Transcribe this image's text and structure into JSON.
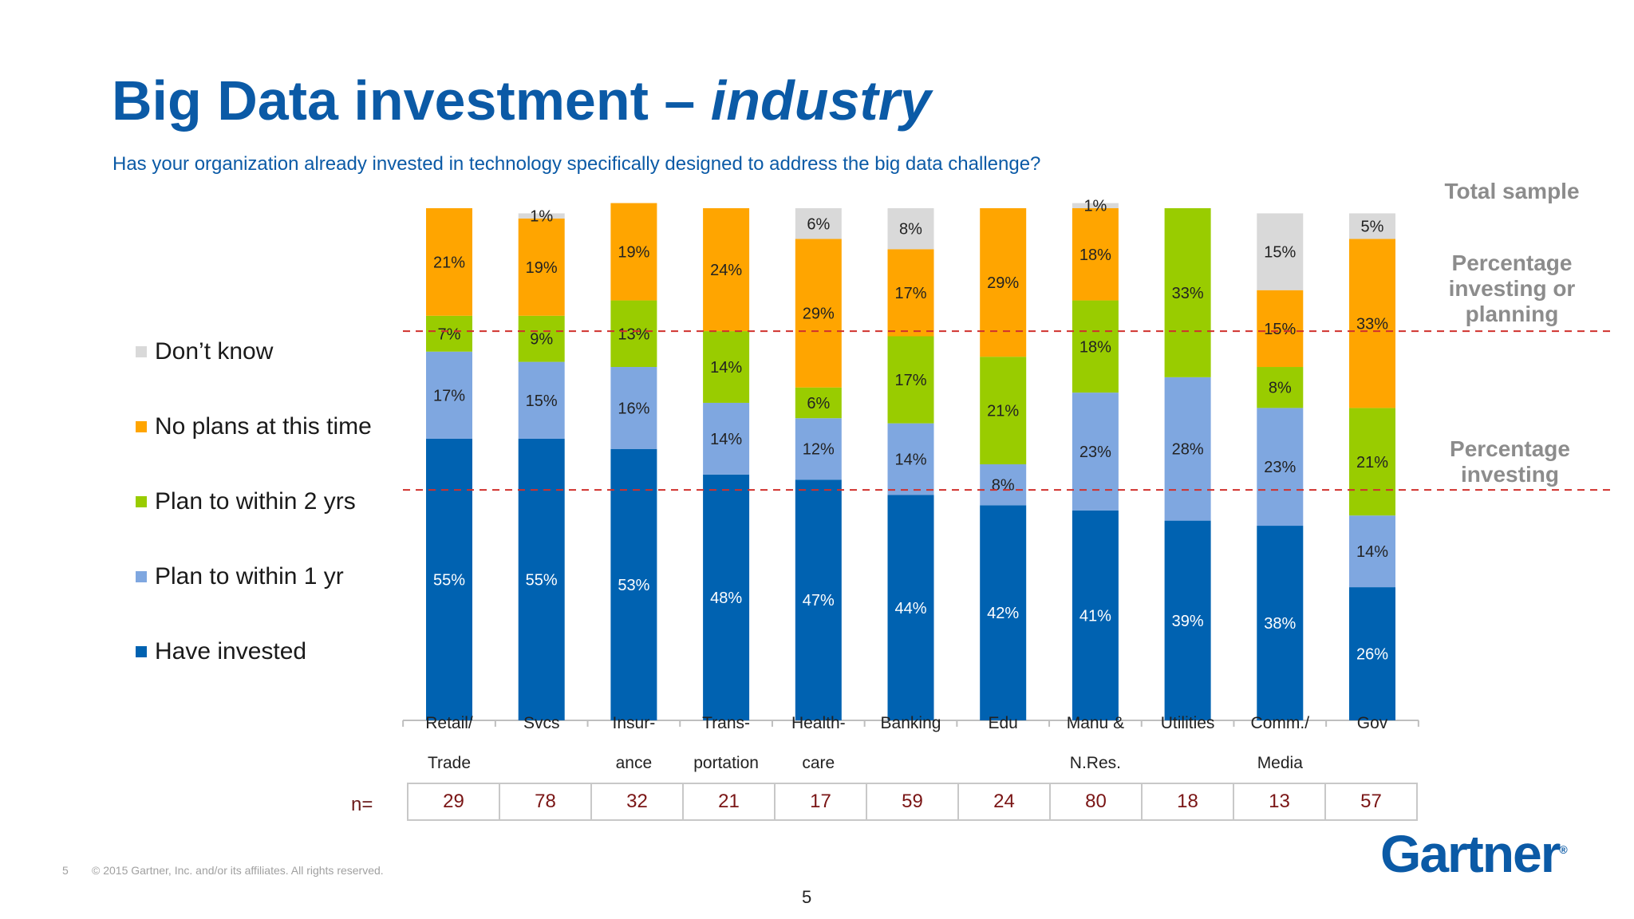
{
  "header": {
    "title_main": "Big Data investment – ",
    "title_italic": "industry",
    "subtitle": "Has your organization already invested in technology specifically designed to address the big data challenge?"
  },
  "side_labels": {
    "total": "Total sample",
    "planning": "Percentage investing or planning",
    "investing": "Percentage investing"
  },
  "colors": {
    "dont_know": "#d9d9d9",
    "no_plans": "#ffa500",
    "plan_2yrs": "#99cc00",
    "plan_1yr": "#7fa7e0",
    "have_invested": "#0062b1",
    "ref_line": "#d0312d",
    "title": "#0b5aa6"
  },
  "chart_data": {
    "type": "bar",
    "stacked": true,
    "categories": [
      [
        "Retail/",
        "Trade"
      ],
      [
        "Svcs",
        ""
      ],
      [
        "Insur-",
        "ance"
      ],
      [
        "Trans-",
        "portation"
      ],
      [
        "Health-",
        "care"
      ],
      [
        "Banking",
        ""
      ],
      [
        "Edu",
        ""
      ],
      [
        "Manu &",
        "N.Res."
      ],
      [
        "Utilities",
        ""
      ],
      [
        "Comm./",
        "Media"
      ],
      [
        "Gov",
        ""
      ]
    ],
    "series": [
      {
        "name": "Have invested",
        "color_key": "have_invested",
        "values": [
          55,
          55,
          53,
          48,
          47,
          44,
          42,
          41,
          39,
          38,
          26
        ]
      },
      {
        "name": "Plan to within 1 yr",
        "color_key": "plan_1yr",
        "values": [
          17,
          15,
          16,
          14,
          12,
          14,
          8,
          23,
          28,
          23,
          14
        ]
      },
      {
        "name": "Plan to within 2 yrs",
        "color_key": "plan_2yrs",
        "values": [
          7,
          9,
          13,
          14,
          6,
          17,
          21,
          18,
          33,
          8,
          21
        ]
      },
      {
        "name": "No plans at this time",
        "color_key": "no_plans",
        "values": [
          21,
          19,
          19,
          24,
          29,
          17,
          29,
          18,
          0,
          15,
          33
        ]
      },
      {
        "name": "Don’t know",
        "color_key": "dont_know",
        "values": [
          0,
          1,
          0,
          0,
          6,
          8,
          0,
          1,
          0,
          15,
          5
        ]
      }
    ],
    "labels": [
      [
        "55%",
        "17%",
        "7%",
        "21%",
        ""
      ],
      [
        "55%",
        "15%",
        "9%",
        "19%",
        "1%"
      ],
      [
        "53%",
        "16%",
        "13%",
        "19%",
        ""
      ],
      [
        "48%",
        "14%",
        "14%",
        "24%",
        ""
      ],
      [
        "47%",
        "12%",
        "6%",
        "29%",
        "6%"
      ],
      [
        "44%",
        "14%",
        "17%",
        "17%",
        "8%"
      ],
      [
        "42%",
        "8%",
        "21%",
        "29%",
        ""
      ],
      [
        "41%",
        "23%",
        "18%",
        "18%",
        "1%"
      ],
      [
        "39%",
        "28%",
        "33%",
        "",
        ""
      ],
      [
        "38%",
        "23%",
        "8%",
        "15%",
        "15%"
      ],
      [
        "26%",
        "14%",
        "21%",
        "33%",
        "5%"
      ]
    ],
    "reference_lines": {
      "investing": 45,
      "investing_or_planning": 76
    },
    "ylim": [
      0,
      100
    ],
    "n_label": "n=",
    "n_values": [
      "29",
      "78",
      "32",
      "21",
      "17",
      "59",
      "24",
      "80",
      "18",
      "13",
      "57"
    ]
  },
  "footer": {
    "page": "5",
    "copyright": "© 2015 Gartner, Inc. and/or its affiliates. All rights reserved.",
    "slide_number": "5",
    "logo": "Gartner",
    "logo_mark": "®"
  }
}
